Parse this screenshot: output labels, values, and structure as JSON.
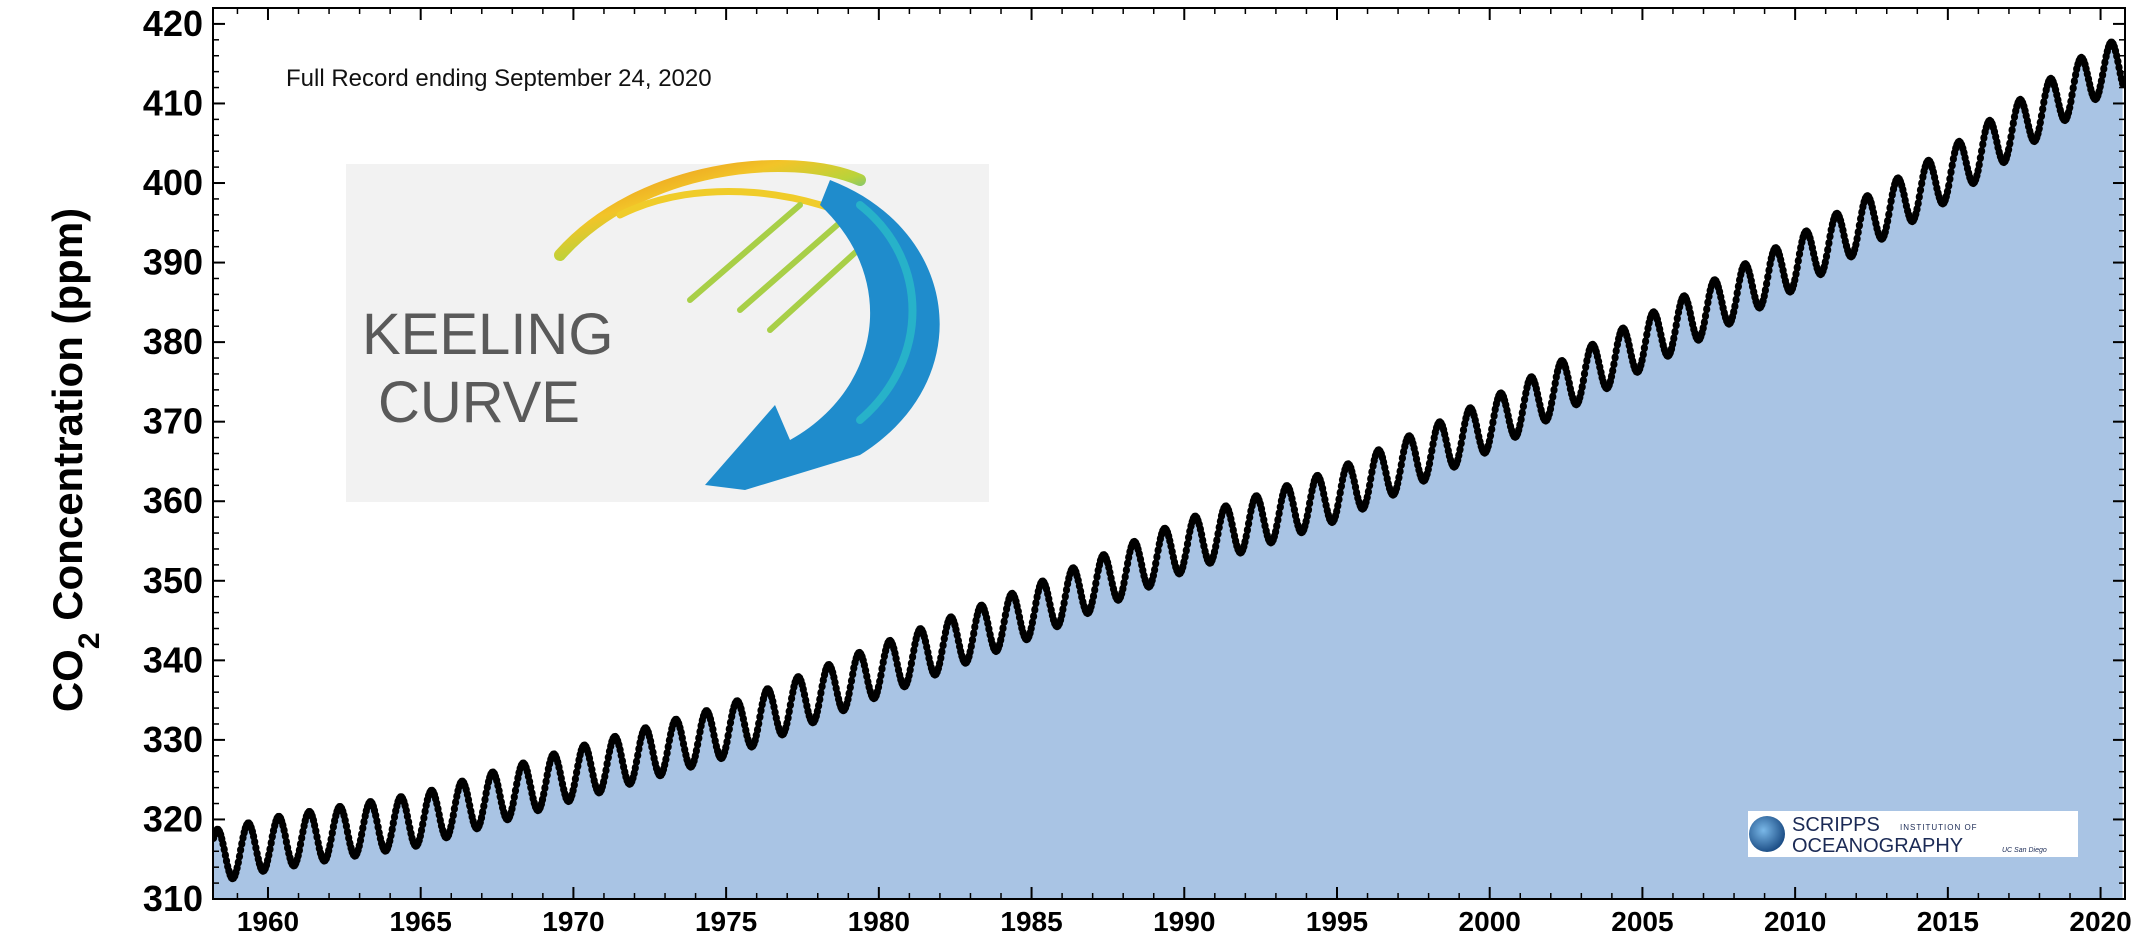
{
  "chart_data": {
    "type": "scatter",
    "title": "",
    "annotation": "Full Record ending September 24, 2020",
    "ylabel_main": "CO",
    "ylabel_sub": "2",
    "ylabel_rest": " Concentration (ppm)",
    "xlabel": "",
    "xlim": [
      1958.2,
      2020.8
    ],
    "ylim": [
      310,
      422
    ],
    "x_ticks": [
      1960,
      1965,
      1970,
      1975,
      1980,
      1985,
      1990,
      1995,
      2000,
      2005,
      2010,
      2015,
      2020
    ],
    "y_ticks": [
      310,
      320,
      330,
      340,
      350,
      360,
      370,
      380,
      390,
      400,
      410,
      420
    ],
    "grid": false,
    "fill_under": true,
    "colors": {
      "fill": "#a9c4e4",
      "points": "#000000",
      "axis": "#000000"
    },
    "series": [
      {
        "years": [
          1958.5,
          1960,
          1965,
          1970,
          1975,
          1980,
          1985,
          1990,
          1995,
          2000,
          2005,
          2010,
          2015,
          2020,
          2020.7
        ],
        "trend_ppm": [
          315.5,
          316.9,
          320.0,
          325.7,
          331.1,
          338.7,
          346.1,
          354.4,
          360.8,
          369.6,
          379.8,
          389.9,
          401.0,
          414.2,
          414.7
        ],
        "seasonal_amplitude_ppm": 3.2
      }
    ]
  },
  "logos": {
    "keeling": {
      "line1": "KEELING",
      "line2": "CURVE"
    },
    "scripps": {
      "name": "SCRIPPS",
      "tag": "INSTITUTION OF",
      "name2": "OCEANOGRAPHY",
      "tag2": "UC San Diego"
    }
  }
}
